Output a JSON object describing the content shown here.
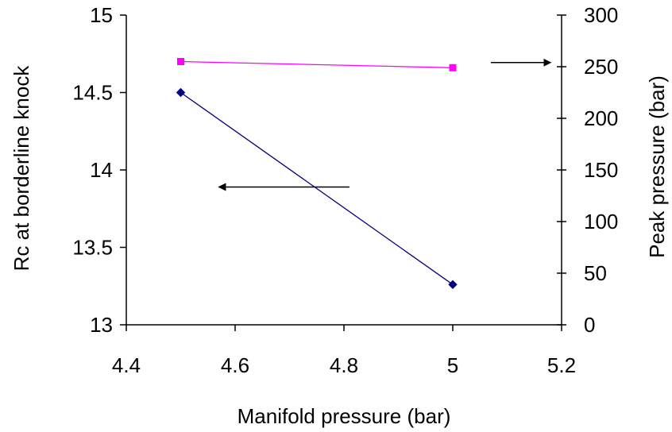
{
  "chart_data": {
    "type": "line",
    "title": "",
    "xlabel": "Manifold pressure (bar)",
    "ylabel_left": "Rc at borderline knock",
    "ylabel_right": "Peak  pressure (bar)",
    "xlim": [
      4.4,
      5.2
    ],
    "ylim_left": [
      13,
      15
    ],
    "ylim_right": [
      0,
      300
    ],
    "x_ticks": [
      "4.4",
      "4.6",
      "4.8",
      "5",
      "5.2"
    ],
    "y_left_ticks": [
      "13",
      "13.5",
      "14",
      "14.5",
      "15"
    ],
    "y_right_ticks": [
      "0",
      "50",
      "100",
      "150",
      "200",
      "250",
      "300"
    ],
    "grid": false,
    "series": [
      {
        "axis": "left",
        "color": "#000080",
        "marker": "diamond",
        "x": [
          4.5,
          5.0
        ],
        "y": [
          14.5,
          13.26
        ]
      },
      {
        "axis": "right",
        "color": "#ff00ff",
        "marker": "square",
        "x": [
          4.5,
          5.0
        ],
        "y": [
          255,
          249
        ]
      }
    ],
    "annotations": [
      {
        "type": "arrow",
        "direction": "left",
        "points_to": "left-axis",
        "x_from": 4.81,
        "x_to": 4.57,
        "y_left": 13.89
      },
      {
        "type": "arrow",
        "direction": "right",
        "points_to": "right-axis",
        "x_from": 5.07,
        "x_to": 5.18,
        "y_right": 254
      }
    ]
  }
}
